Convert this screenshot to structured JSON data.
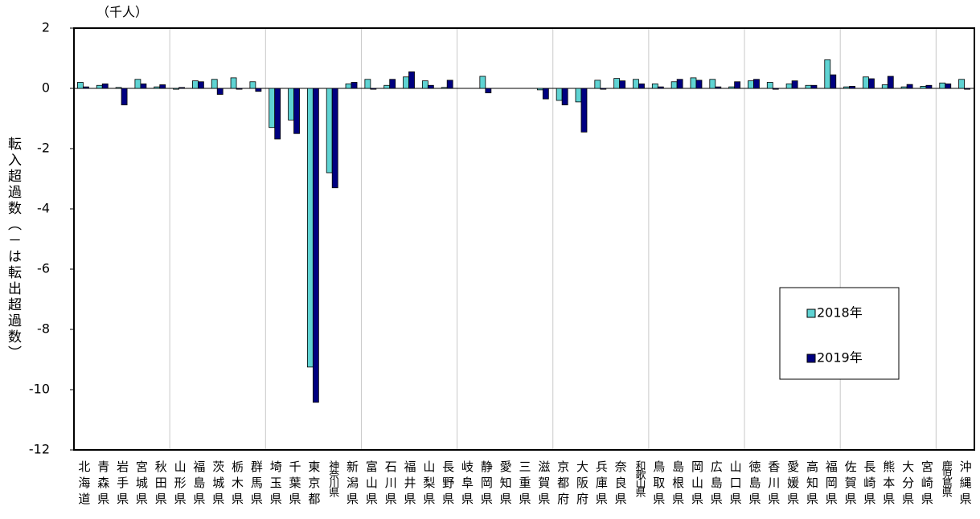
{
  "chart_data": {
    "type": "bar",
    "unit_label": "（千人）",
    "y_label": "転入超過数（－は転出超過数）",
    "categories": [
      "北海道",
      "青森県",
      "岩手県",
      "宮城県",
      "秋田県",
      "山形県",
      "福島県",
      "茨城県",
      "栃木県",
      "群馬県",
      "埼玉県",
      "千葉県",
      "東京都",
      "神奈川県",
      "新潟県",
      "富山県",
      "石川県",
      "福井県",
      "山梨県",
      "長野県",
      "岐阜県",
      "静岡県",
      "愛知県",
      "三重県",
      "滋賀県",
      "京都府",
      "大阪府",
      "兵庫県",
      "奈良県",
      "和歌山県",
      "鳥取県",
      "島根県",
      "岡山県",
      "広島県",
      "山口県",
      "徳島県",
      "香川県",
      "愛媛県",
      "高知県",
      "福岡県",
      "佐賀県",
      "長崎県",
      "熊本県",
      "大分県",
      "宮崎県",
      "鹿児島県",
      "沖縄県"
    ],
    "series": [
      {
        "name": "2018年",
        "color": "#5fd3d3",
        "values": [
          0.2,
          0.1,
          0.03,
          0.3,
          0.05,
          -0.03,
          0.25,
          0.3,
          0.35,
          0.22,
          -1.3,
          -1.05,
          -9.25,
          -2.8,
          0.15,
          0.3,
          0.1,
          0.38,
          0.25,
          0.03,
          0,
          0.4,
          0,
          0,
          -0.05,
          -0.4,
          -0.45,
          0.27,
          0.33,
          0.3,
          0.15,
          0.22,
          0.35,
          0.3,
          0.05,
          0.25,
          0.2,
          0.15,
          0.1,
          0.95,
          0.05,
          0.38,
          0.12,
          0.05,
          0.07,
          0.18,
          0.3
        ]
      },
      {
        "name": "2019年",
        "color": "#000080",
        "values": [
          0.05,
          0.15,
          -0.55,
          0.15,
          0.12,
          0.03,
          0.22,
          -0.2,
          -0.03,
          -0.1,
          -1.68,
          -1.5,
          -10.42,
          -3.3,
          0.2,
          -0.03,
          0.3,
          0.55,
          0.1,
          0.27,
          0,
          -0.15,
          0,
          0,
          -0.35,
          -0.55,
          -1.45,
          -0.03,
          0.25,
          0.15,
          0.05,
          0.3,
          0.27,
          0.05,
          0.22,
          0.3,
          -0.03,
          0.25,
          0.1,
          0.45,
          0.07,
          0.32,
          0.4,
          0.13,
          0.1,
          0.15,
          -0.03
        ]
      }
    ],
    "ylim": [
      -12,
      2
    ],
    "yticks": [
      2,
      0,
      -2,
      -4,
      -6,
      -8,
      -10,
      -12
    ],
    "grid": true,
    "legend": "right"
  }
}
